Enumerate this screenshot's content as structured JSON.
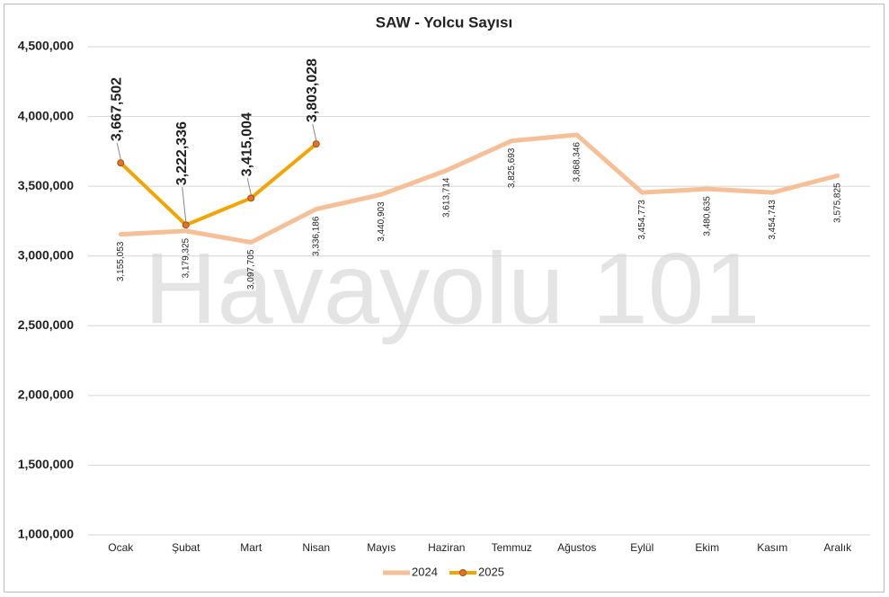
{
  "chart_data": {
    "type": "line",
    "title": "SAW - Yolcu Sayısı",
    "watermark": "Havayolu 101",
    "categories": [
      "Ocak",
      "Şubat",
      "Mart",
      "Nisan",
      "Mayıs",
      "Haziran",
      "Temmuz",
      "Ağustos",
      "Eylül",
      "Ekim",
      "Kasım",
      "Aralık"
    ],
    "series": [
      {
        "name": "2024",
        "color": "#f5bf98",
        "values": [
          3155053,
          3179325,
          3097705,
          3336186,
          3440903,
          3613714,
          3825693,
          3868346,
          3454773,
          3480635,
          3454743,
          3575825
        ],
        "value_labels": [
          "3,155,053",
          "3,179,325",
          "3,097,705",
          "3,336,186",
          "3,440,903",
          "3,613,714",
          "3,825,693",
          "3,868,346",
          "3,454,773",
          "3,480,635",
          "3,454,743",
          "3,575,825"
        ]
      },
      {
        "name": "2025",
        "color": "#f0a500",
        "marker_color": "#e2712c",
        "values": [
          3667502,
          3222336,
          3415004,
          3803028,
          null,
          null,
          null,
          null,
          null,
          null,
          null,
          null
        ],
        "value_labels": [
          "3,667,502",
          "3,222,336",
          "3,415,004",
          "3,803,028",
          null,
          null,
          null,
          null,
          null,
          null,
          null,
          null
        ]
      }
    ],
    "ylim": [
      1000000,
      4500000
    ],
    "yticks": [
      {
        "value": 1000000,
        "label": "1,000,000"
      },
      {
        "value": 1500000,
        "label": "1,500,000"
      },
      {
        "value": 2000000,
        "label": "2,000,000"
      },
      {
        "value": 2500000,
        "label": "2,500,000"
      },
      {
        "value": 3000000,
        "label": "3,000,000"
      },
      {
        "value": 3500000,
        "label": "3,500,000"
      },
      {
        "value": 4000000,
        "label": "4,000,000"
      },
      {
        "value": 4500000,
        "label": "4,500,000"
      }
    ],
    "grid": true,
    "legend": "bottom"
  }
}
